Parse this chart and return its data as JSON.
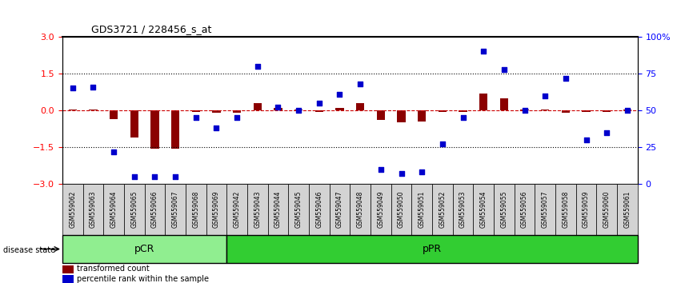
{
  "title": "GDS3721 / 228456_s_at",
  "samples": [
    "GSM559062",
    "GSM559063",
    "GSM559064",
    "GSM559065",
    "GSM559066",
    "GSM559067",
    "GSM559068",
    "GSM559069",
    "GSM559042",
    "GSM559043",
    "GSM559044",
    "GSM559045",
    "GSM559046",
    "GSM559047",
    "GSM559048",
    "GSM559049",
    "GSM559050",
    "GSM559051",
    "GSM559052",
    "GSM559053",
    "GSM559054",
    "GSM559055",
    "GSM559056",
    "GSM559057",
    "GSM559058",
    "GSM559059",
    "GSM559060",
    "GSM559061"
  ],
  "transformed_count": [
    0.05,
    0.05,
    -0.35,
    -1.1,
    -1.55,
    -1.55,
    -0.05,
    -0.1,
    -0.1,
    0.3,
    0.1,
    0.05,
    -0.05,
    0.1,
    0.3,
    -0.4,
    -0.5,
    -0.45,
    -0.05,
    -0.05,
    0.7,
    0.5,
    0.05,
    0.05,
    -0.1,
    -0.05,
    -0.05,
    0.05
  ],
  "percentile_rank": [
    65,
    66,
    22,
    5,
    5,
    5,
    45,
    38,
    45,
    80,
    52,
    50,
    55,
    61,
    68,
    10,
    7,
    8,
    27,
    45,
    90,
    78,
    50,
    60,
    72,
    30,
    35,
    50
  ],
  "pCR_count": 8,
  "pPR_count": 20,
  "bar_color": "#8B0000",
  "dot_color": "#0000CC",
  "pCR_color": "#90EE90",
  "pPR_color": "#32CD32",
  "ylim": [
    -3,
    3
  ],
  "y2lim": [
    0,
    100
  ],
  "yticks": [
    -3,
    -1.5,
    0,
    1.5,
    3
  ],
  "y2ticks": [
    0,
    25,
    50,
    75,
    100
  ],
  "dotted_lines": [
    -1.5,
    1.5
  ],
  "zero_line_color": "#CC0000"
}
